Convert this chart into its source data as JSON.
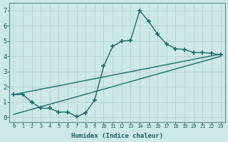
{
  "title": "",
  "xlabel": "Humidex (Indice chaleur)",
  "ylabel": "",
  "bg_color": "#cde8e8",
  "grid_color": "#b8d4d4",
  "line_color": "#1a6e6a",
  "xlim": [
    -0.5,
    23.5
  ],
  "ylim": [
    -0.3,
    7.5
  ],
  "xticks": [
    0,
    1,
    2,
    3,
    4,
    5,
    6,
    7,
    8,
    9,
    10,
    11,
    12,
    13,
    14,
    15,
    16,
    17,
    18,
    19,
    20,
    21,
    22,
    23
  ],
  "yticks": [
    0,
    1,
    2,
    3,
    4,
    5,
    6,
    7
  ],
  "series": [
    {
      "x": [
        0,
        1,
        2,
        3,
        4,
        5,
        6,
        7,
        8,
        9,
        10,
        11,
        12,
        13,
        14,
        15,
        16,
        17,
        18,
        19,
        20,
        21,
        22,
        23
      ],
      "y": [
        1.5,
        1.5,
        1.0,
        0.6,
        0.6,
        0.35,
        0.35,
        0.05,
        0.3,
        1.15,
        3.35,
        4.65,
        5.0,
        5.05,
        7.0,
        6.3,
        5.45,
        4.8,
        4.5,
        4.45,
        4.25,
        4.25,
        4.2,
        4.1
      ],
      "marker": "+",
      "markersize": 4,
      "linewidth": 1.0
    },
    {
      "x": [
        0,
        23
      ],
      "y": [
        1.5,
        4.15
      ],
      "marker": null,
      "markersize": 0,
      "linewidth": 1.0
    },
    {
      "x": [
        0,
        23
      ],
      "y": [
        0.2,
        4.0
      ],
      "marker": null,
      "markersize": 0,
      "linewidth": 1.0
    }
  ]
}
